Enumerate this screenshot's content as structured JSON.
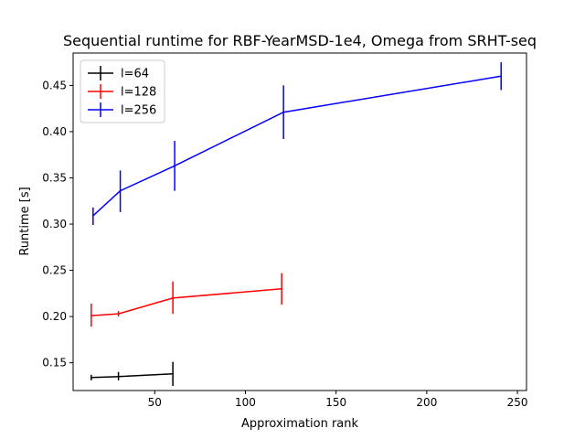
{
  "chart_data": {
    "type": "line",
    "title": "Sequential runtime for RBF-YearMSD-1e4, Omega from SRHT-seq",
    "xlabel": "Approximation rank",
    "ylabel": "Runtime [s]",
    "xlim": [
      5,
      255
    ],
    "ylim": [
      0.12,
      0.485
    ],
    "xticks": [
      50,
      100,
      150,
      200,
      250
    ],
    "yticks": [
      0.15,
      0.2,
      0.25,
      0.3,
      0.35,
      0.4,
      0.45
    ],
    "grid": false,
    "legend_position": "top-left",
    "series": [
      {
        "name": "l=64",
        "color": "#000000",
        "x": [
          15,
          30,
          60
        ],
        "y": [
          0.134,
          0.135,
          0.138
        ],
        "err_low": [
          0.131,
          0.131,
          0.125
        ],
        "err_high": [
          0.137,
          0.14,
          0.151
        ]
      },
      {
        "name": "l=128",
        "color": "#ff0000",
        "x": [
          15,
          30,
          60,
          120
        ],
        "y": [
          0.201,
          0.203,
          0.22,
          0.23
        ],
        "err_low": [
          0.189,
          0.2,
          0.203,
          0.213
        ],
        "err_high": [
          0.214,
          0.206,
          0.238,
          0.247
        ]
      },
      {
        "name": "l=256",
        "color": "#0000ff",
        "x": [
          16,
          31,
          61,
          121,
          241
        ],
        "y": [
          0.309,
          0.336,
          0.363,
          0.421,
          0.46
        ],
        "err_low": [
          0.299,
          0.313,
          0.336,
          0.392,
          0.445
        ],
        "err_high": [
          0.318,
          0.358,
          0.39,
          0.45,
          0.475
        ]
      }
    ]
  }
}
